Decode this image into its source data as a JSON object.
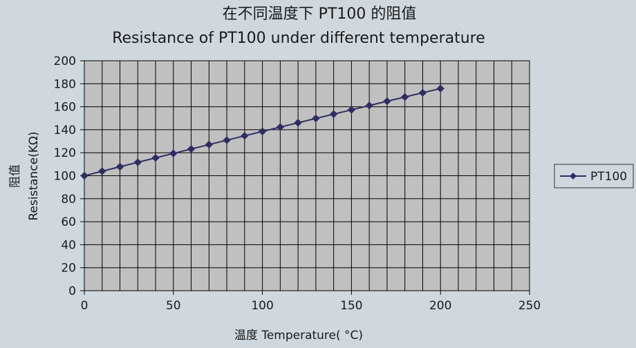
{
  "chart_data": {
    "type": "line",
    "title_cn": "在不同温度下 PT100 的阻值",
    "title_en": "Resistance of PT100 under different temperature",
    "xlabel": "温度 Temperature( °C)",
    "ylabel_cn": "阻值",
    "ylabel_en": "Resistance(KΩ)",
    "xlim": [
      0,
      250
    ],
    "ylim": [
      0,
      200
    ],
    "x_ticks": [
      0,
      50,
      100,
      150,
      200,
      250
    ],
    "y_ticks": [
      0,
      20,
      40,
      60,
      80,
      100,
      120,
      140,
      160,
      180,
      200
    ],
    "x_grid_step": 10,
    "y_grid_step": 20,
    "grid": true,
    "legend_position": "right",
    "colors": {
      "background": "#cfd8df",
      "plot_area": "#c0c0c0",
      "grid": "#000000",
      "series": "#2e2e62"
    },
    "series": [
      {
        "name": "PT100",
        "marker": "diamond",
        "x": [
          0,
          10,
          20,
          30,
          40,
          50,
          60,
          70,
          80,
          90,
          100,
          110,
          120,
          130,
          140,
          150,
          160,
          170,
          180,
          190,
          200
        ],
        "y": [
          100.0,
          103.9,
          107.79,
          111.67,
          115.54,
          119.4,
          123.24,
          127.08,
          130.9,
          134.71,
          138.51,
          142.29,
          146.07,
          149.83,
          153.58,
          157.33,
          161.05,
          164.77,
          168.48,
          172.17,
          175.86
        ]
      }
    ]
  }
}
